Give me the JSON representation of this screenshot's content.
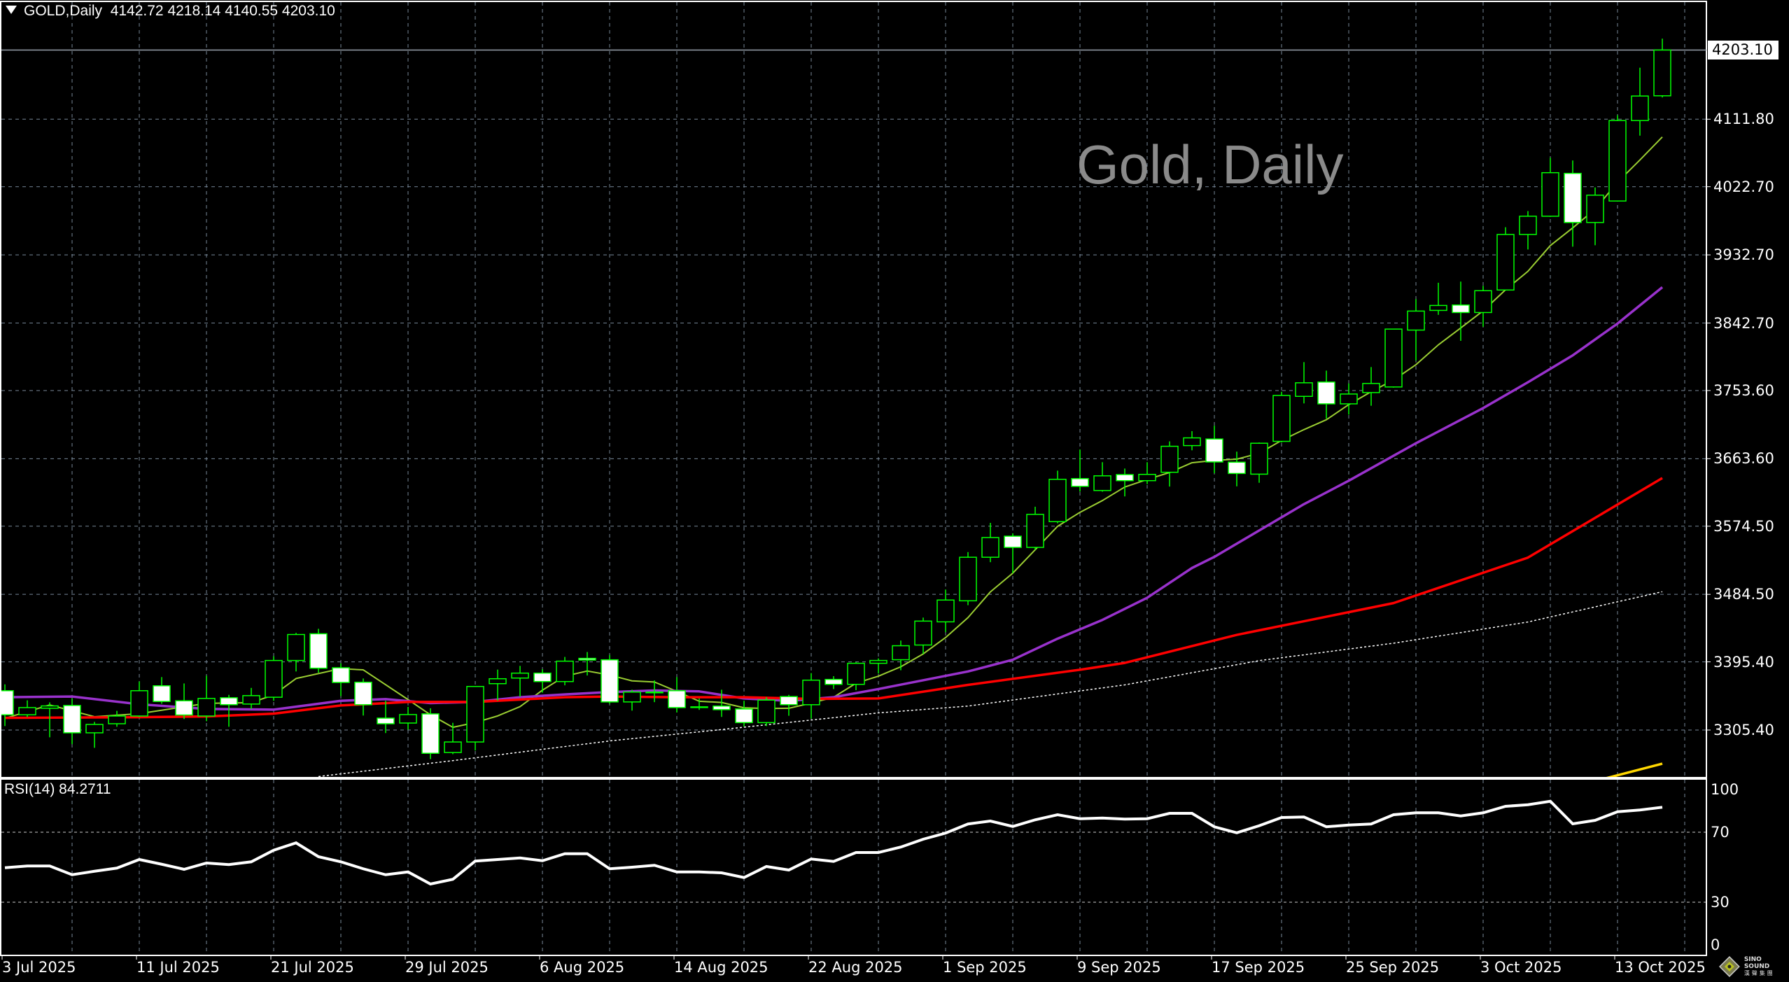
{
  "header": {
    "symbol": "GOLD,Daily",
    "ohlc_text": "4142.72 4218.14 4140.55 4203.10"
  },
  "watermark": "Gold, Daily",
  "rsi_header": "RSI(14) 84.2711",
  "current_price_label": "4203.10",
  "price_ticks": [
    "4111.80",
    "4022.70",
    "3932.70",
    "3842.70",
    "3753.60",
    "3663.60",
    "3574.50",
    "3484.50",
    "3395.40",
    "3305.40"
  ],
  "rsi_ticks": [
    "100",
    "70",
    "30",
    "0"
  ],
  "date_labels": [
    "3 Jul 2025",
    "11 Jul 2025",
    "21 Jul 2025",
    "29 Jul 2025",
    "6 Aug 2025",
    "14 Aug 2025",
    "22 Aug 2025",
    "1 Sep 2025",
    "9 Sep 2025",
    "17 Sep 2025",
    "25 Sep 2025",
    "3 Oct 2025",
    "13 Oct 2025"
  ],
  "logo": {
    "name": "SINO SOUND",
    "chinese": "漢聲集團"
  },
  "colors": {
    "background": "#000000",
    "bull_outline": "#00ff00",
    "bear_body": "#ffffff",
    "grid": "#778899",
    "ma_fast": "#9acd32",
    "ma_mid": "#9932cc",
    "ma_slow": "#ff0000",
    "ma_long": "#ffffff",
    "ma_extra": "#ffd700",
    "rsi": "#ffffff"
  },
  "chart_data": {
    "type": "candlestick",
    "title": "GOLD,Daily",
    "ylim": [
      3243.5,
      4232
    ],
    "grid": true,
    "dates": [
      "2025-07-03",
      "2025-07-04",
      "2025-07-07",
      "2025-07-08",
      "2025-07-09",
      "2025-07-10",
      "2025-07-11",
      "2025-07-14",
      "2025-07-15",
      "2025-07-16",
      "2025-07-17",
      "2025-07-18",
      "2025-07-21",
      "2025-07-22",
      "2025-07-23",
      "2025-07-24",
      "2025-07-25",
      "2025-07-28",
      "2025-07-29",
      "2025-07-30",
      "2025-07-31",
      "2025-08-01",
      "2025-08-04",
      "2025-08-05",
      "2025-08-06",
      "2025-08-07",
      "2025-08-08",
      "2025-08-11",
      "2025-08-12",
      "2025-08-13",
      "2025-08-14",
      "2025-08-15",
      "2025-08-18",
      "2025-08-19",
      "2025-08-20",
      "2025-08-21",
      "2025-08-22",
      "2025-08-25",
      "2025-08-26",
      "2025-08-27",
      "2025-08-28",
      "2025-08-29",
      "2025-09-01",
      "2025-09-02",
      "2025-09-03",
      "2025-09-04",
      "2025-09-05",
      "2025-09-08",
      "2025-09-09",
      "2025-09-10",
      "2025-09-11",
      "2025-09-12",
      "2025-09-15",
      "2025-09-16",
      "2025-09-17",
      "2025-09-18",
      "2025-09-19",
      "2025-09-22",
      "2025-09-23",
      "2025-09-24",
      "2025-09-25",
      "2025-09-26",
      "2025-09-29",
      "2025-09-30",
      "2025-10-01",
      "2025-10-02",
      "2025-10-03",
      "2025-10-06",
      "2025-10-07",
      "2025-10-08",
      "2025-10-09",
      "2025-10-10",
      "2025-10-13",
      "2025-10-14",
      "2025-10-15"
    ],
    "ohlc": [
      [
        3357.3,
        3365.7,
        3310.6,
        3325.5
      ],
      [
        3325.5,
        3344.6,
        3322.4,
        3335.0
      ],
      [
        3334.1,
        3341.9,
        3295.8,
        3337.2
      ],
      [
        3337.8,
        3347.1,
        3286.8,
        3301.7
      ],
      [
        3301.7,
        3316.2,
        3281.9,
        3312.8
      ],
      [
        3313.7,
        3330.7,
        3309.7,
        3323.9
      ],
      [
        3323.9,
        3369.4,
        3322.4,
        3357.3
      ],
      [
        3363.8,
        3375.3,
        3340.0,
        3343.1
      ],
      [
        3344.0,
        3366.9,
        3319.9,
        3325.2
      ],
      [
        3323.9,
        3377.1,
        3317.1,
        3347.1
      ],
      [
        3348.0,
        3351.8,
        3309.7,
        3338.8
      ],
      [
        3339.7,
        3361.0,
        3333.2,
        3350.8
      ],
      [
        3348.7,
        3402.8,
        3344.0,
        3397.2
      ],
      [
        3397.2,
        3433.7,
        3382.7,
        3431.5
      ],
      [
        3432.5,
        3439.0,
        3381.1,
        3387.0
      ],
      [
        3387.6,
        3393.5,
        3350.2,
        3368.2
      ],
      [
        3368.5,
        3373.4,
        3324.5,
        3338.8
      ],
      [
        3321.1,
        3344.0,
        3301.4,
        3313.7
      ],
      [
        3314.6,
        3336.0,
        3306.0,
        3325.8
      ],
      [
        3326.7,
        3334.1,
        3267.0,
        3274.7
      ],
      [
        3275.7,
        3314.9,
        3273.5,
        3289.6
      ],
      [
        3289.6,
        3362.9,
        3278.4,
        3362.9
      ],
      [
        3366.6,
        3385.2,
        3344.0,
        3373.1
      ],
      [
        3374.0,
        3390.1,
        3349.3,
        3380.5
      ],
      [
        3380.5,
        3385.8,
        3354.8,
        3369.4
      ],
      [
        3369.4,
        3401.9,
        3364.4,
        3396.3
      ],
      [
        3400.0,
        3408.4,
        3377.4,
        3397.8
      ],
      [
        3398.1,
        3404.6,
        3340.0,
        3342.5
      ],
      [
        3342.5,
        3358.6,
        3331.0,
        3355.5
      ],
      [
        3354.9,
        3370.9,
        3342.2,
        3355.5
      ],
      [
        3357.3,
        3375.3,
        3328.6,
        3335.0
      ],
      [
        3336.0,
        3347.1,
        3332.0,
        3335.5
      ],
      [
        3337.0,
        3358.6,
        3322.7,
        3332.3
      ],
      [
        3333.2,
        3344.0,
        3310.0,
        3315.2
      ],
      [
        3315.2,
        3348.7,
        3310.6,
        3344.9
      ],
      [
        3349.6,
        3351.8,
        3324.2,
        3338.8
      ],
      [
        3338.8,
        3380.5,
        3320.5,
        3371.2
      ],
      [
        3372.2,
        3376.5,
        3359.5,
        3365.7
      ],
      [
        3365.7,
        3395.0,
        3358.0,
        3393.5
      ],
      [
        3393.5,
        3400.0,
        3380.0,
        3397.2
      ],
      [
        3398.2,
        3423.5,
        3384.3,
        3416.7
      ],
      [
        3417.6,
        3453.8,
        3405.9,
        3449.2
      ],
      [
        3448.2,
        3490.9,
        3434.6,
        3477.0
      ],
      [
        3476.0,
        3540.3,
        3470.2,
        3533.5
      ],
      [
        3533.5,
        3578.9,
        3527.0,
        3559.5
      ],
      [
        3561.3,
        3565.0,
        3512.5,
        3546.5
      ],
      [
        3546.5,
        3600.2,
        3543.4,
        3590.1
      ],
      [
        3580.5,
        3647.8,
        3578.3,
        3636.4
      ],
      [
        3637.3,
        3675.7,
        3620.0,
        3627.1
      ],
      [
        3621.6,
        3659.0,
        3620.0,
        3641.0
      ],
      [
        3642.6,
        3650.6,
        3613.8,
        3634.6
      ],
      [
        3634.6,
        3659.0,
        3630.0,
        3642.9
      ],
      [
        3645.7,
        3686.5,
        3626.8,
        3680.0
      ],
      [
        3680.9,
        3700.0,
        3674.7,
        3691.1
      ],
      [
        3689.6,
        3707.2,
        3644.4,
        3659.3
      ],
      [
        3659.0,
        3672.9,
        3627.1,
        3644.1
      ],
      [
        3643.2,
        3685.0,
        3631.8,
        3684.0
      ],
      [
        3686.5,
        3752.0,
        3685.0,
        3747.1
      ],
      [
        3745.9,
        3791.1,
        3736.6,
        3763.8
      ],
      [
        3764.8,
        3779.9,
        3716.5,
        3736.0
      ],
      [
        3736.0,
        3762.9,
        3721.8,
        3749.0
      ],
      [
        3750.9,
        3784.6,
        3733.5,
        3762.9
      ],
      [
        3758.3,
        3834.7,
        3757.4,
        3834.7
      ],
      [
        3833.4,
        3874.3,
        3793.2,
        3858.5
      ],
      [
        3859.4,
        3895.9,
        3853.5,
        3865.9
      ],
      [
        3866.5,
        3897.4,
        3819.2,
        3856.6
      ],
      [
        3856.6,
        3891.9,
        3837.8,
        3885.4
      ],
      [
        3886.3,
        3969.2,
        3886.0,
        3959.6
      ],
      [
        3959.6,
        3990.5,
        3939.8,
        3983.7
      ],
      [
        3983.7,
        4061.0,
        3982.8,
        4041.2
      ],
      [
        4040.3,
        4057.3,
        3943.5,
        3975.4
      ],
      [
        3975.4,
        4021.7,
        3945.4,
        4011.5
      ],
      [
        4003.8,
        4117.0,
        4003.0,
        4110.0
      ],
      [
        4110.0,
        4179.8,
        4090.1,
        4142.4
      ],
      [
        4142.72,
        4218.14,
        4140.55,
        4203.1
      ]
    ],
    "moving_averages": [
      {
        "color": "#9acd32",
        "style": "thin",
        "points": [
          [
            "2025-07-03",
            3320.8
          ],
          [
            "2025-07-07",
            3338.5
          ],
          [
            "2025-07-09",
            3323
          ],
          [
            "2025-07-11",
            3327
          ],
          [
            "2025-07-16",
            3340.6
          ],
          [
            "2025-07-18",
            3341.5
          ],
          [
            "2025-07-21",
            3351.8
          ],
          [
            "2025-07-22",
            3373.4
          ],
          [
            "2025-07-24",
            3386.4
          ],
          [
            "2025-07-25",
            3384.8
          ],
          [
            "2025-07-29",
            3345.6
          ],
          [
            "2025-07-30",
            3325.5
          ],
          [
            "2025-07-31",
            3309
          ],
          [
            "2025-08-01",
            3315.3
          ],
          [
            "2025-08-04",
            3324
          ],
          [
            "2025-08-05",
            3336.3
          ],
          [
            "2025-08-06",
            3358
          ],
          [
            "2025-08-07",
            3376.5
          ],
          [
            "2025-08-08",
            3383.3
          ],
          [
            "2025-08-11",
            3378
          ],
          [
            "2025-08-12",
            3370.3
          ],
          [
            "2025-08-13",
            3368.8
          ],
          [
            "2025-08-14",
            3356.4
          ],
          [
            "2025-08-15",
            3343.4
          ],
          [
            "2025-08-18",
            3341.8
          ],
          [
            "2025-08-19",
            3334.7
          ],
          [
            "2025-08-20",
            3333.8
          ],
          [
            "2025-08-21",
            3334.1
          ],
          [
            "2025-08-22",
            3340.9
          ],
          [
            "2025-08-25",
            3348.7
          ],
          [
            "2025-08-26",
            3367.2
          ],
          [
            "2025-08-27",
            3376.5
          ],
          [
            "2025-08-28",
            3388.9
          ],
          [
            "2025-08-29",
            3405.9
          ],
          [
            "2025-09-01",
            3427.5
          ],
          [
            "2025-09-02",
            3453.8
          ],
          [
            "2025-09-03",
            3487.8
          ],
          [
            "2025-09-04",
            3512.5
          ],
          [
            "2025-09-05",
            3543.4
          ],
          [
            "2025-09-08",
            3574.3
          ],
          [
            "2025-09-09",
            3592.8
          ],
          [
            "2025-09-10",
            3608.3
          ],
          [
            "2025-09-11",
            3626.2
          ],
          [
            "2025-09-12",
            3636.1
          ],
          [
            "2025-09-15",
            3645.4
          ],
          [
            "2025-09-16",
            3658.3
          ],
          [
            "2025-09-17",
            3661.4
          ],
          [
            "2025-09-18",
            3663
          ],
          [
            "2025-09-19",
            3670.7
          ],
          [
            "2025-09-22",
            3687.7
          ],
          [
            "2025-09-23",
            3702
          ],
          [
            "2025-09-24",
            3715
          ],
          [
            "2025-09-25",
            3735
          ],
          [
            "2025-09-26",
            3752
          ],
          [
            "2025-09-29",
            3767.5
          ],
          [
            "2025-09-30",
            3787.7
          ],
          [
            "2025-10-01",
            3813.9
          ],
          [
            "2025-10-02",
            3836.2
          ],
          [
            "2025-10-03",
            3858.8
          ],
          [
            "2025-10-06",
            3886.6
          ],
          [
            "2025-10-07",
            3911
          ],
          [
            "2025-10-08",
            3945
          ],
          [
            "2025-10-09",
            3968.3
          ],
          [
            "2025-10-10",
            3993
          ],
          [
            "2025-10-13",
            4028.6
          ],
          [
            "2025-10-14",
            4058
          ],
          [
            "2025-10-15",
            4088.3
          ]
        ]
      },
      {
        "color": "#9932cc",
        "style": "thick",
        "points": [
          [
            "2025-07-03",
            3348.7
          ],
          [
            "2025-07-08",
            3349.6
          ],
          [
            "2025-07-11",
            3339.4
          ],
          [
            "2025-07-16",
            3333.2
          ],
          [
            "2025-07-21",
            3332.3
          ],
          [
            "2025-07-24",
            3344
          ],
          [
            "2025-07-28",
            3346.2
          ],
          [
            "2025-07-30",
            3341
          ],
          [
            "2025-08-01",
            3342.5
          ],
          [
            "2025-08-05",
            3348.7
          ],
          [
            "2025-08-07",
            3352.4
          ],
          [
            "2025-08-11",
            3355.5
          ],
          [
            "2025-08-13",
            3357.6
          ],
          [
            "2025-08-15",
            3356.4
          ],
          [
            "2025-08-19",
            3347.1
          ],
          [
            "2025-08-21",
            3344
          ],
          [
            "2025-08-25",
            3348.7
          ],
          [
            "2025-08-27",
            3359.5
          ],
          [
            "2025-09-02",
            3382.7
          ],
          [
            "2025-09-04",
            3398.2
          ],
          [
            "2025-09-08",
            3426
          ],
          [
            "2025-09-10",
            3450.7
          ],
          [
            "2025-09-12",
            3480
          ],
          [
            "2025-09-16",
            3519.3
          ],
          [
            "2025-09-17",
            3534
          ],
          [
            "2025-09-23",
            3603.6
          ],
          [
            "2025-09-25",
            3634.5
          ],
          [
            "2025-09-30",
            3684
          ],
          [
            "2025-10-03",
            3730.4
          ],
          [
            "2025-10-07",
            3764.5
          ],
          [
            "2025-10-09",
            3800
          ],
          [
            "2025-10-13",
            3842
          ],
          [
            "2025-10-15",
            3890
          ]
        ]
      },
      {
        "color": "#ff0000",
        "style": "thick",
        "points": [
          [
            "2025-07-03",
            3321.4
          ],
          [
            "2025-07-11",
            3322.4
          ],
          [
            "2025-07-16",
            3323.3
          ],
          [
            "2025-07-21",
            3327
          ],
          [
            "2025-07-24",
            3337.8
          ],
          [
            "2025-07-29",
            3342.5
          ],
          [
            "2025-08-01",
            3342.5
          ],
          [
            "2025-08-05",
            3345.6
          ],
          [
            "2025-08-07",
            3348.7
          ],
          [
            "2025-08-11",
            3349.6
          ],
          [
            "2025-08-14",
            3348.7
          ],
          [
            "2025-08-19",
            3348.7
          ],
          [
            "2025-08-22",
            3346.5
          ],
          [
            "2025-08-27",
            3347.1
          ],
          [
            "2025-09-02",
            3365
          ],
          [
            "2025-09-09",
            3385
          ],
          [
            "2025-09-11",
            3394
          ],
          [
            "2025-09-18",
            3431
          ],
          [
            "2025-09-29",
            3473
          ],
          [
            "2025-10-07",
            3533
          ],
          [
            "2025-10-15",
            3638
          ]
        ]
      },
      {
        "color": "#ffffff",
        "style": "dotted",
        "points": [
          [
            "2025-07-23",
            3244
          ],
          [
            "2025-07-31",
            3265
          ],
          [
            "2025-08-11",
            3291
          ],
          [
            "2025-08-18",
            3306
          ],
          [
            "2025-08-27",
            3328
          ],
          [
            "2025-09-02",
            3337
          ],
          [
            "2025-09-11",
            3365
          ],
          [
            "2025-09-19",
            3397
          ],
          [
            "2025-09-29",
            3420
          ],
          [
            "2025-10-07",
            3448
          ],
          [
            "2025-10-15",
            3488
          ]
        ]
      },
      {
        "color": "#ffd700",
        "style": "thick",
        "points": [
          [
            "2025-10-10",
            3238
          ],
          [
            "2025-10-15",
            3261
          ]
        ]
      }
    ],
    "rsi": {
      "period": 14,
      "ylim": [
        0,
        100
      ],
      "levels": [
        70,
        30
      ],
      "values": [
        49.7,
        50.7,
        50.7,
        45.7,
        47.7,
        49.5,
        54.4,
        51.7,
        48.8,
        52.4,
        51.5,
        53.1,
        59.7,
        63.9,
        56,
        53.1,
        49.1,
        45.7,
        47.3,
        40.4,
        43.1,
        53.5,
        54.4,
        55.3,
        53.7,
        57.7,
        57.7,
        49.1,
        50,
        51.1,
        47.3,
        47.3,
        46.8,
        44.1,
        50.4,
        48.4,
        54.7,
        53.3,
        58.4,
        58.4,
        61.5,
        66,
        69.5,
        74.7,
        76.4,
        73.3,
        77.1,
        80,
        77.7,
        78.1,
        77.5,
        77.7,
        80.8,
        80.8,
        73.1,
        69.7,
        73.7,
        78.4,
        78.7,
        73.1,
        74.1,
        74.7,
        80,
        81.1,
        81.1,
        79.3,
        81.1,
        84.8,
        85.7,
        87.7,
        74.8,
        76.8,
        81.7,
        82.7,
        84.27
      ]
    }
  }
}
